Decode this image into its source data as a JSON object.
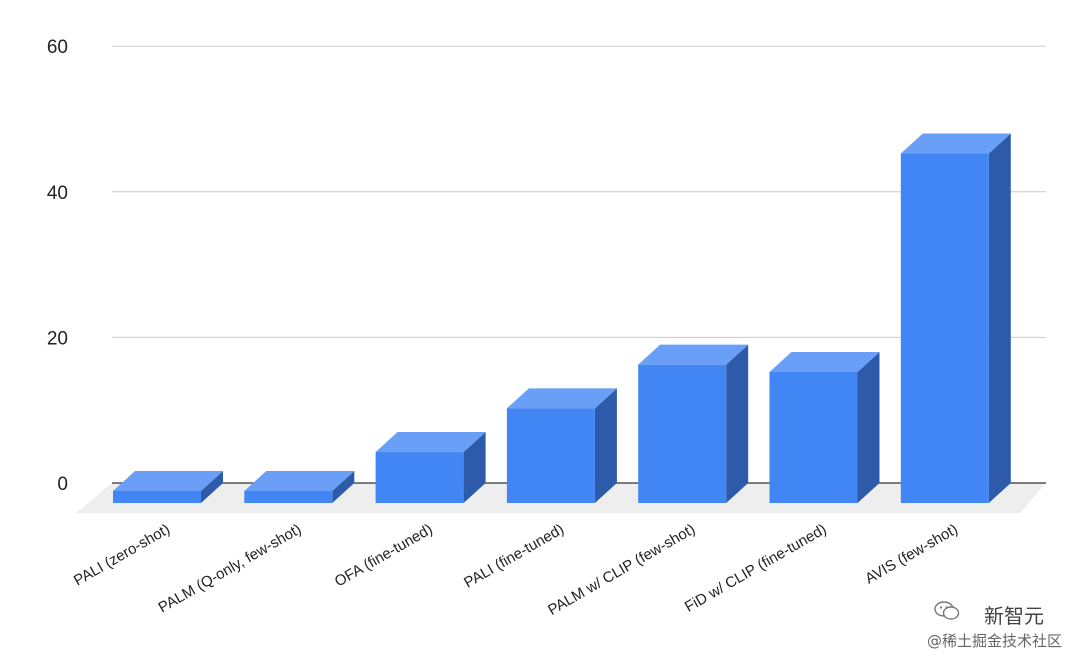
{
  "chart_data": {
    "type": "bar",
    "style": "3d-column",
    "categories": [
      "PALI (zero-shot)",
      "PALM (Q-only, few-shot)",
      "OFA (fine-tuned)",
      "PALI (fine-tuned)",
      "PALM w/ CLIP (few-shot)",
      "FiD w/ CLIP (fine-tuned)",
      "AVIS (few-shot)"
    ],
    "values": [
      -1,
      1,
      7,
      13,
      19,
      18,
      48
    ],
    "ylim": [
      0,
      60
    ],
    "yticks": [
      0,
      20,
      40,
      60
    ],
    "grid": true,
    "title": "",
    "xlabel": "",
    "ylabel": "",
    "colors": {
      "bar_front": "#4285f4",
      "bar_top": "#6a9ff7",
      "bar_side": "#2e5ba9",
      "floor": "#eeeeee",
      "grid": "#cccccc",
      "baseline": "#333333"
    }
  },
  "watermark": {
    "main": "新智元",
    "sub": "@稀土掘金技术社区",
    "icon": "wechat-icon"
  }
}
